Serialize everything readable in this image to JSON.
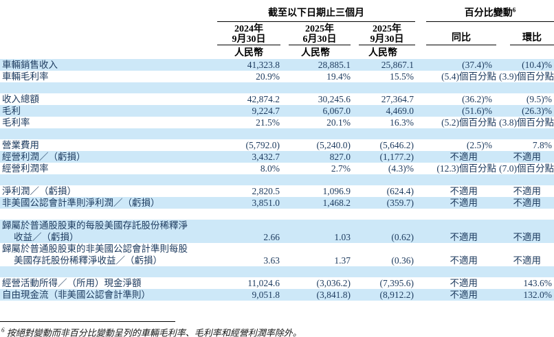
{
  "header": {
    "span_period": "截至以下日期止三個月",
    "span_change": "百分比變動",
    "span_change_sup": "6",
    "col1_line1": "2024年",
    "col1_line2": "9月30日",
    "col2_line1": "2025年",
    "col2_line2": "6月30日",
    "col3_line1": "2025年",
    "col3_line2": "9月30日",
    "currency": "人民幣",
    "yoy": "同比",
    "qoq": "環比"
  },
  "table": {
    "rows": [
      {
        "bg": "blue",
        "label": "車輛銷售收入",
        "values": [
          "41,323.8",
          "28,885.1",
          "25,867.1",
          "(37.4)%",
          "(10.4)%"
        ]
      },
      {
        "bg": "white",
        "label": "車輛毛利率",
        "values": [
          "20.9%",
          "19.4%",
          "15.5%",
          "(5.4)個百分點",
          "(3.9)個百分點"
        ]
      },
      {
        "bg": "blue",
        "spacer": true
      },
      {
        "bg": "white",
        "label": "收入總額",
        "values": [
          "42,874.2",
          "30,245.6",
          "27,364.7",
          "(36.2)%",
          "(9.5)%"
        ]
      },
      {
        "bg": "blue",
        "label": "毛利",
        "values": [
          "9,224.7",
          "6,067.0",
          "4,469.0",
          "(51.6)%",
          "(26.3)%"
        ]
      },
      {
        "bg": "white",
        "label": "毛利率",
        "values": [
          "21.5%",
          "20.1%",
          "16.3%",
          "(5.2)個百分點",
          "(3.8)個百分點"
        ]
      },
      {
        "bg": "blue",
        "spacer": true
      },
      {
        "bg": "white",
        "label": "營業費用",
        "values": [
          "(5,792.0)",
          "(5,240.0)",
          "(5,646.2)",
          "(2.5)%",
          "7.8%"
        ]
      },
      {
        "bg": "blue",
        "label": "經營利潤／（虧損）",
        "values": [
          "3,432.7",
          "827.0",
          "(1,177.2)",
          "不適用",
          "不適用"
        ]
      },
      {
        "bg": "white",
        "label": "經營利潤率",
        "values": [
          "8.0%",
          "2.7%",
          "(4.3)%",
          "(12.3)個百分點",
          "(7.0)個百分點"
        ]
      },
      {
        "bg": "blue",
        "spacer": true
      },
      {
        "bg": "white",
        "label": "淨利潤／（虧損）",
        "values": [
          "2,820.5",
          "1,096.9",
          "(624.4)",
          "不適用",
          "不適用"
        ]
      },
      {
        "bg": "blue",
        "label": "非美國公認會計準則淨利潤／（虧損）",
        "values": [
          "3,851.0",
          "1,468.2",
          "(359.7)",
          "不適用",
          "不適用"
        ]
      },
      {
        "bg": "white",
        "spacer": true
      },
      {
        "bg": "blue",
        "twoline": true,
        "label": "歸屬於普通股股東的每股美國存託股份稀釋淨\n收益／（虧損）",
        "values": [
          "2.66",
          "1.03",
          "(0.62)",
          "不適用",
          "不適用"
        ]
      },
      {
        "bg": "white",
        "twoline": true,
        "label": "歸屬於普通股股東的非美國公認會計準則每股\n美國存託股份稀釋淨收益／（虧損）",
        "values": [
          "3.63",
          "1.37",
          "(0.36)",
          "不適用",
          "不適用"
        ]
      },
      {
        "bg": "blue",
        "spacer": true
      },
      {
        "bg": "white",
        "label": "經營活動所得／（所用）現金淨額",
        "values": [
          "11,024.6",
          "(3,036.2)",
          "(7,395.6)",
          "不適用",
          "143.6%"
        ]
      },
      {
        "bg": "blue",
        "label": "自由現金流（非美國公認會計準則）",
        "values": [
          "9,051.8",
          "(3,841.8)",
          "(8,912.2)",
          "不適用",
          "132.0%"
        ]
      }
    ]
  },
  "footnote": {
    "sup": "6",
    "text": "按絕對變動而非百分比變動呈列的車輛毛利率、毛利率和經營利潤率除外。"
  },
  "colors": {
    "stripe": "#cde8f8",
    "body_text": "#1c3a5e",
    "header_text": "#000000",
    "rule": "#000000"
  }
}
